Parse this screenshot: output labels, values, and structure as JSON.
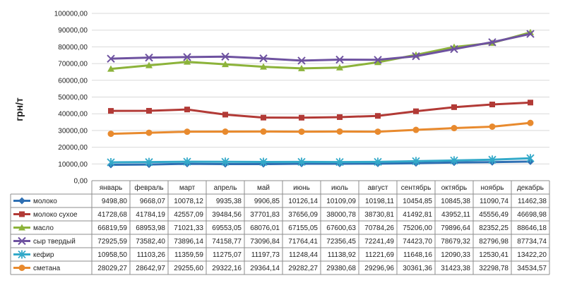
{
  "chart_data": {
    "type": "line",
    "ylabel": "грн/т",
    "ylim": [
      0,
      100000
    ],
    "ytick_step": 10000,
    "ytick_labels": [
      "0,00",
      "10000,00",
      "20000,00",
      "30000,00",
      "40000,00",
      "50000,00",
      "60000,00",
      "70000,00",
      "80000,00",
      "90000,00",
      "100000,00"
    ],
    "grid": true,
    "legend": "data-table-below",
    "categories": [
      "январь",
      "февраль",
      "март",
      "апрель",
      "май",
      "июнь",
      "июль",
      "август",
      "сентябрь",
      "октябрь",
      "ноябрь",
      "декабрь"
    ],
    "series": [
      {
        "name": "молоко",
        "color": "#2e6fb3",
        "marker": "diamond",
        "values": [
          9498.8,
          9668.07,
          10078.12,
          9935.38,
          9906.85,
          10126.14,
          10109.09,
          10198.11,
          10454.85,
          10845.38,
          11090.74,
          11462.38
        ],
        "labels": [
          "9498,80",
          "9668,07",
          "10078,12",
          "9935,38",
          "9906,85",
          "10126,14",
          "10109,09",
          "10198,11",
          "10454,85",
          "10845,38",
          "11090,74",
          "11462,38"
        ]
      },
      {
        "name": "молоко сухое",
        "color": "#b23a36",
        "marker": "square",
        "values": [
          41728.68,
          41784.19,
          42557.09,
          39484.56,
          37701.83,
          37656.09,
          38000.78,
          38730.81,
          41492.81,
          43952.11,
          45556.49,
          46698.98
        ],
        "labels": [
          "41728,68",
          "41784,19",
          "42557,09",
          "39484,56",
          "37701,83",
          "37656,09",
          "38000,78",
          "38730,81",
          "41492,81",
          "43952,11",
          "45556,49",
          "46698,98"
        ]
      },
      {
        "name": "масло",
        "color": "#8cb33a",
        "marker": "triangle",
        "values": [
          66819.59,
          68953.98,
          71021.33,
          69553.05,
          68076.01,
          67155.05,
          67600.63,
          70784.26,
          75206.0,
          79896.64,
          82352.25,
          88646.18
        ],
        "labels": [
          "66819,59",
          "68953,98",
          "71021,33",
          "69553,05",
          "68076,01",
          "67155,05",
          "67600,63",
          "70784,26",
          "75206,00",
          "79896,64",
          "82352,25",
          "88646,18"
        ]
      },
      {
        "name": "сыр твердый",
        "color": "#6e52a0",
        "marker": "x",
        "values": [
          72925.59,
          73582.4,
          73896.14,
          74158.77,
          73096.84,
          71764.41,
          72356.45,
          72241.49,
          74423.7,
          78679.32,
          82796.98,
          87734.74
        ],
        "labels": [
          "72925,59",
          "73582,40",
          "73896,14",
          "74158,77",
          "73096,84",
          "71764,41",
          "72356,45",
          "72241,49",
          "74423,70",
          "78679,32",
          "82796,98",
          "87734,74"
        ]
      },
      {
        "name": "кефир",
        "color": "#33a9c9",
        "marker": "star",
        "values": [
          10958.5,
          11103.26,
          11359.59,
          11275.07,
          11197.73,
          11248.44,
          11138.92,
          11221.69,
          11648.16,
          12090.33,
          12530.41,
          13422.2
        ],
        "labels": [
          "10958,50",
          "11103,26",
          "11359,59",
          "11275,07",
          "11197,73",
          "11248,44",
          "11138,92",
          "11221,69",
          "11648,16",
          "12090,33",
          "12530,41",
          "13422,20"
        ]
      },
      {
        "name": "сметана",
        "color": "#e88a2e",
        "marker": "circle",
        "values": [
          28029.27,
          28642.97,
          29255.6,
          29322.16,
          29364.14,
          29282.27,
          29380.68,
          29296.96,
          30361.36,
          31423.38,
          32298.78,
          34534.57
        ],
        "labels": [
          "28029,27",
          "28642,97",
          "29255,60",
          "29322,16",
          "29364,14",
          "29282,27",
          "29380,68",
          "29296,96",
          "30361,36",
          "31423,38",
          "32298,78",
          "34534,57"
        ]
      }
    ]
  }
}
